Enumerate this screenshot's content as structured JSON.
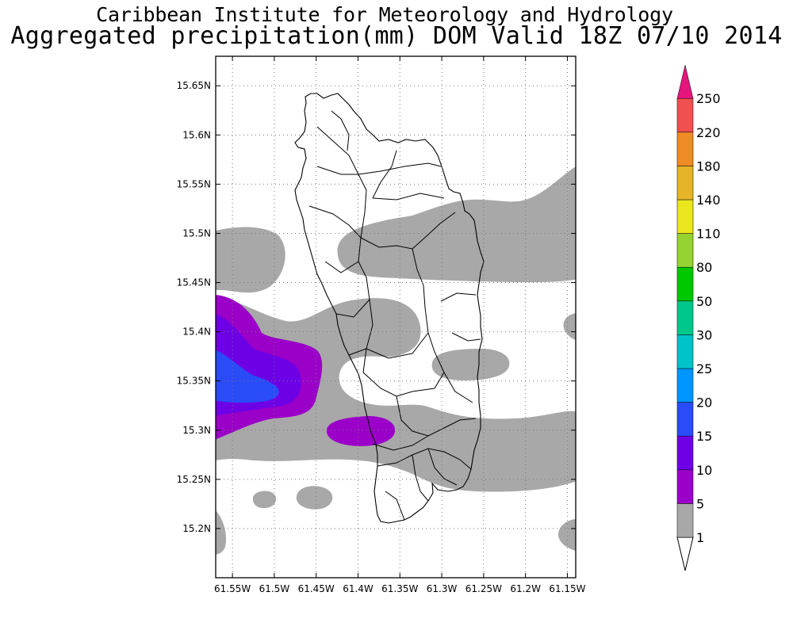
{
  "titles": {
    "line1": "Caribbean Institute for Meteorology and Hydrology",
    "line2": "Aggregated precipitation(mm) DOM Valid 18Z 07/10 2014"
  },
  "map": {
    "region": "Dominica",
    "lat_range": [
      15.15,
      15.68
    ],
    "lon_range": [
      -61.57,
      -61.14
    ],
    "lat_ticks": [
      {
        "value": 15.65,
        "label": "15.65N"
      },
      {
        "value": 15.6,
        "label": "15.6N"
      },
      {
        "value": 15.55,
        "label": "15.55N"
      },
      {
        "value": 15.5,
        "label": "15.5N"
      },
      {
        "value": 15.45,
        "label": "15.45N"
      },
      {
        "value": 15.4,
        "label": "15.4N"
      },
      {
        "value": 15.35,
        "label": "15.35N"
      },
      {
        "value": 15.3,
        "label": "15.3N"
      },
      {
        "value": 15.25,
        "label": "15.25N"
      },
      {
        "value": 15.2,
        "label": "15.2N"
      }
    ],
    "lon_ticks": [
      {
        "value": -61.55,
        "label": "61.55W"
      },
      {
        "value": -61.5,
        "label": "61.5W"
      },
      {
        "value": -61.45,
        "label": "61.45W"
      },
      {
        "value": -61.4,
        "label": "61.4W"
      },
      {
        "value": -61.35,
        "label": "61.35W"
      },
      {
        "value": -61.3,
        "label": "61.3W"
      },
      {
        "value": -61.25,
        "label": "61.25W"
      },
      {
        "value": -61.2,
        "label": "61.2W"
      },
      {
        "value": -61.15,
        "label": "61.15W"
      }
    ],
    "gridlines": true,
    "land_color": "#ffffff",
    "boundary_color": "#000000"
  },
  "legend": {
    "position": "right",
    "labels": [
      "1",
      "5",
      "10",
      "15",
      "20",
      "25",
      "30",
      "50",
      "80",
      "110",
      "140",
      "180",
      "220",
      "250"
    ],
    "colors": [
      "#a8a8a8",
      "#9b00c8",
      "#6e00e6",
      "#2a4bf8",
      "#0096ff",
      "#00c3c8",
      "#00c88c",
      "#00c800",
      "#96d232",
      "#ebe61e",
      "#e6b428",
      "#f08c28",
      "#f05050",
      "#e6147d"
    ],
    "low_triangle": "#ffffff",
    "high_triangle": "#e6147d"
  }
}
